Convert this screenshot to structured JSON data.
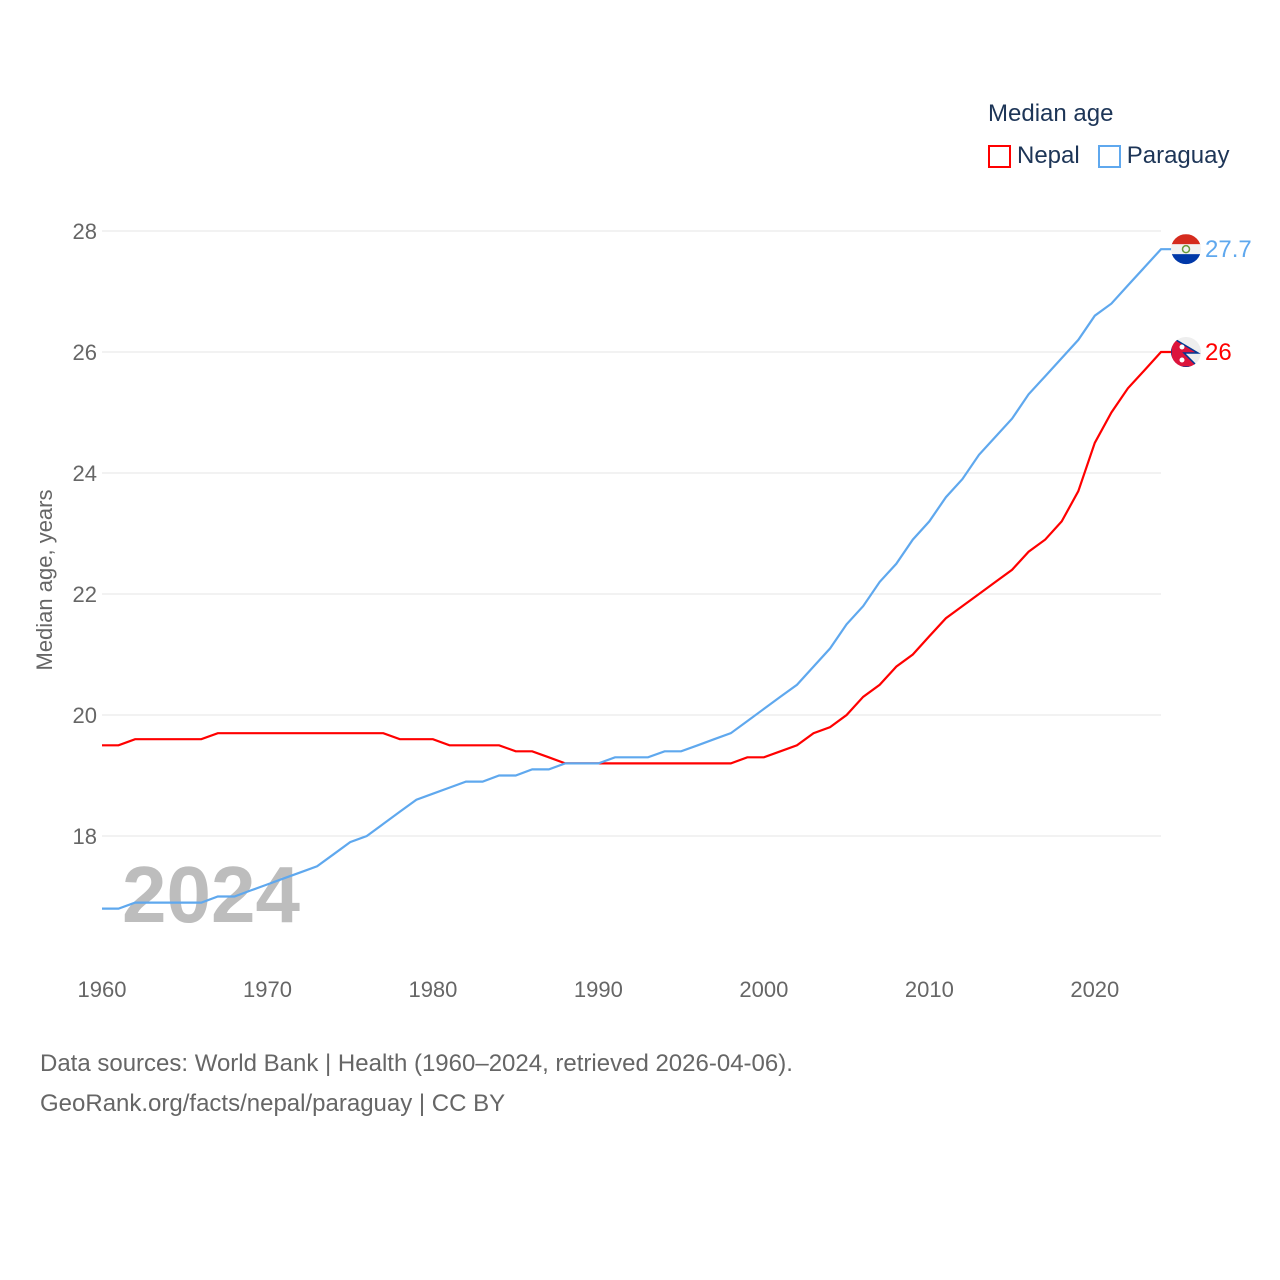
{
  "chart_data": {
    "type": "line",
    "title": "Median age",
    "ylabel": "Median age, years",
    "xlabel": "",
    "ylim": [
      16.3,
      28
    ],
    "xlim": [
      1960,
      2024
    ],
    "yticks": [
      18,
      20,
      22,
      24,
      26,
      28
    ],
    "xticks": [
      1960,
      1970,
      1980,
      1990,
      2000,
      2010,
      2020
    ],
    "grid": true,
    "legend_placement": "top-right",
    "year_watermark": "2024",
    "x": [
      1960,
      1961,
      1962,
      1963,
      1964,
      1965,
      1966,
      1967,
      1968,
      1969,
      1970,
      1971,
      1972,
      1973,
      1974,
      1975,
      1976,
      1977,
      1978,
      1979,
      1980,
      1981,
      1982,
      1983,
      1984,
      1985,
      1986,
      1987,
      1988,
      1989,
      1990,
      1991,
      1992,
      1993,
      1994,
      1995,
      1996,
      1997,
      1998,
      1999,
      2000,
      2001,
      2002,
      2003,
      2004,
      2005,
      2006,
      2007,
      2008,
      2009,
      2010,
      2011,
      2012,
      2013,
      2014,
      2015,
      2016,
      2017,
      2018,
      2019,
      2020,
      2021,
      2022,
      2023,
      2024
    ],
    "series": [
      {
        "name": "Nepal",
        "color": "#ff0000",
        "end_label": "26",
        "values": [
          19.5,
          19.5,
          19.6,
          19.6,
          19.6,
          19.6,
          19.6,
          19.7,
          19.7,
          19.7,
          19.7,
          19.7,
          19.7,
          19.7,
          19.7,
          19.7,
          19.7,
          19.7,
          19.6,
          19.6,
          19.6,
          19.5,
          19.5,
          19.5,
          19.5,
          19.4,
          19.4,
          19.3,
          19.2,
          19.2,
          19.2,
          19.2,
          19.2,
          19.2,
          19.2,
          19.2,
          19.2,
          19.2,
          19.2,
          19.3,
          19.3,
          19.4,
          19.5,
          19.7,
          19.8,
          20.0,
          20.3,
          20.5,
          20.8,
          21.0,
          21.3,
          21.6,
          21.8,
          22.0,
          22.2,
          22.4,
          22.7,
          22.9,
          23.2,
          23.7,
          24.5,
          25.0,
          25.4,
          25.7,
          26.0
        ]
      },
      {
        "name": "Paraguay",
        "color": "#5fa8ee",
        "end_label": "27.7",
        "values": [
          16.8,
          16.8,
          16.9,
          16.9,
          16.9,
          16.9,
          16.9,
          17.0,
          17.0,
          17.1,
          17.2,
          17.3,
          17.4,
          17.5,
          17.7,
          17.9,
          18.0,
          18.2,
          18.4,
          18.6,
          18.7,
          18.8,
          18.9,
          18.9,
          19.0,
          19.0,
          19.1,
          19.1,
          19.2,
          19.2,
          19.2,
          19.3,
          19.3,
          19.3,
          19.4,
          19.4,
          19.5,
          19.6,
          19.7,
          19.9,
          20.1,
          20.3,
          20.5,
          20.8,
          21.1,
          21.5,
          21.8,
          22.2,
          22.5,
          22.9,
          23.2,
          23.6,
          23.9,
          24.3,
          24.6,
          24.9,
          25.3,
          25.6,
          25.9,
          26.2,
          26.6,
          26.8,
          27.1,
          27.4,
          27.7
        ]
      }
    ]
  },
  "footer": {
    "line1": "Data sources: World Bank | Health (1960–2024, retrieved 2026-04-06).",
    "line2": "GeoRank.org/facts/nepal/paraguay | CC BY"
  }
}
